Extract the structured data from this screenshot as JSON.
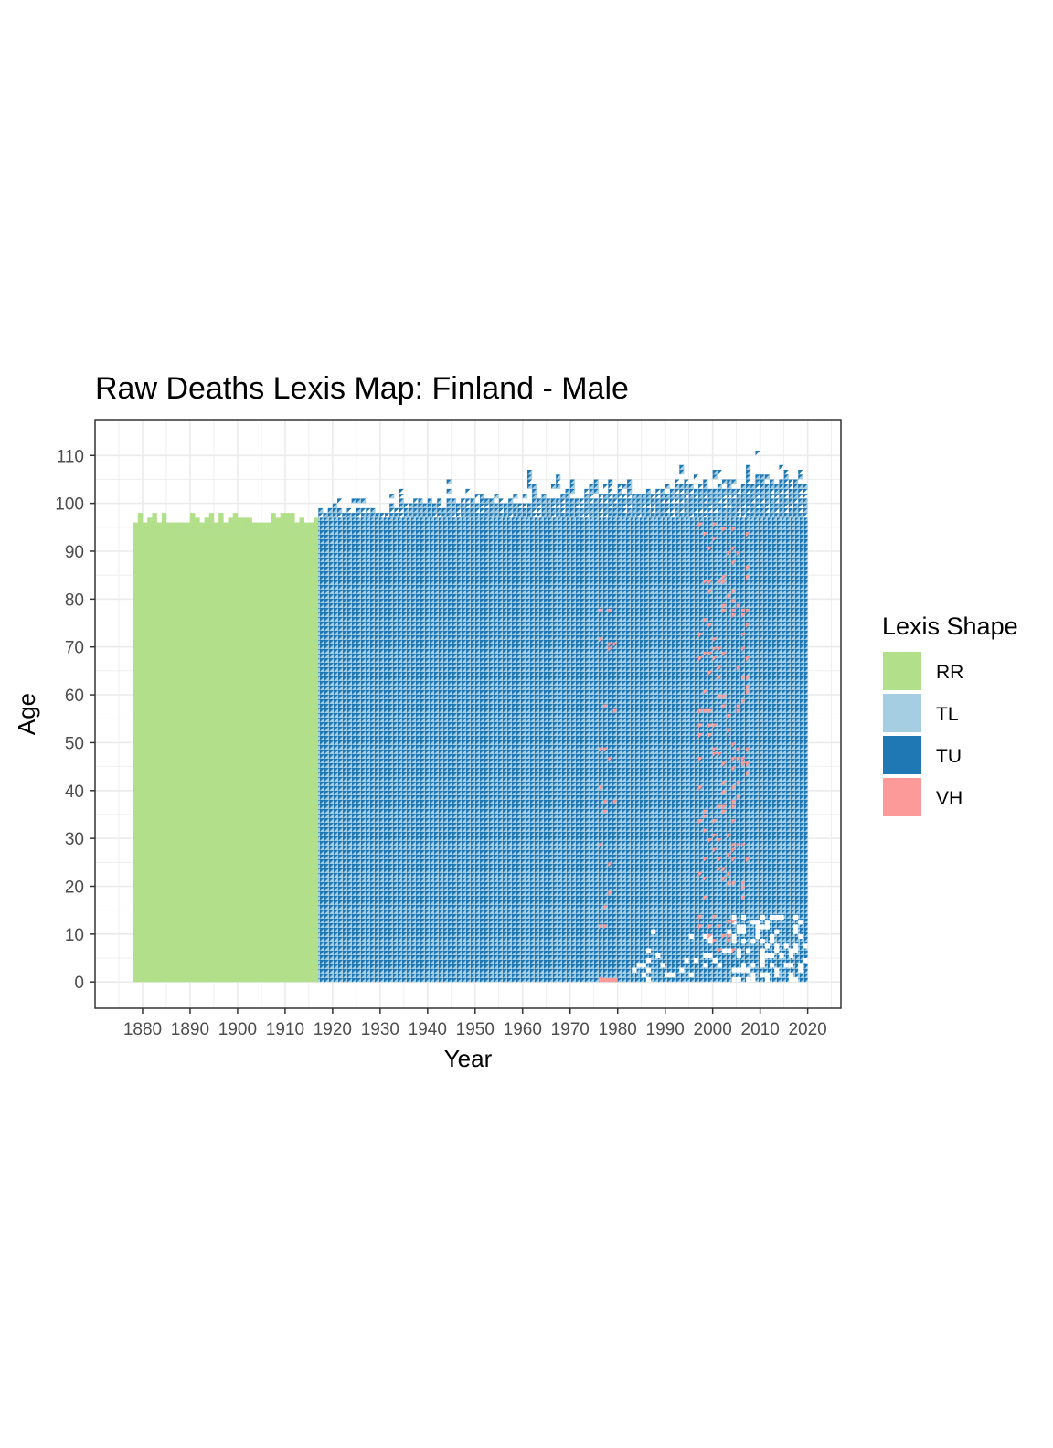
{
  "chart_data": {
    "type": "heatmap",
    "title": "Raw Deaths Lexis Map: Finland - Male",
    "xlabel": "Year",
    "ylabel": "Age",
    "x_ticks": [
      "1880",
      "1890",
      "1900",
      "1910",
      "1920",
      "1930",
      "1940",
      "1950",
      "1960",
      "1970",
      "1980",
      "1990",
      "2000",
      "2010",
      "2020"
    ],
    "y_ticks": [
      "0",
      "10",
      "20",
      "30",
      "40",
      "50",
      "60",
      "70",
      "80",
      "90",
      "100",
      "110"
    ],
    "xlim": [
      1870,
      2027
    ],
    "ylim": [
      -5.5,
      117.5
    ],
    "grid": true,
    "legend": {
      "title": "Lexis Shape",
      "position": "right",
      "entries": [
        {
          "label": "RR",
          "color": "#b2df8a"
        },
        {
          "label": "TL",
          "color": "#a6cee3"
        },
        {
          "label": "TU",
          "color": "#1f78b4"
        },
        {
          "label": "VH",
          "color": "#fb9a99"
        }
      ]
    },
    "regions": [
      {
        "shape": "RR",
        "years": [
          1878,
          1917
        ],
        "ages": [
          0,
          94
        ],
        "upper_edge_irregular_to": 103
      },
      {
        "shape": "TL/TU",
        "years": [
          1917,
          2020
        ],
        "ages": [
          0,
          97
        ],
        "upper_edge_rising_to": 110
      }
    ],
    "vh_clusters": [
      {
        "years": [
          1976,
          1979
        ],
        "ages": [
          0,
          80
        ]
      },
      {
        "years": [
          1997,
          2007
        ],
        "ages": [
          5,
          96
        ]
      }
    ]
  }
}
